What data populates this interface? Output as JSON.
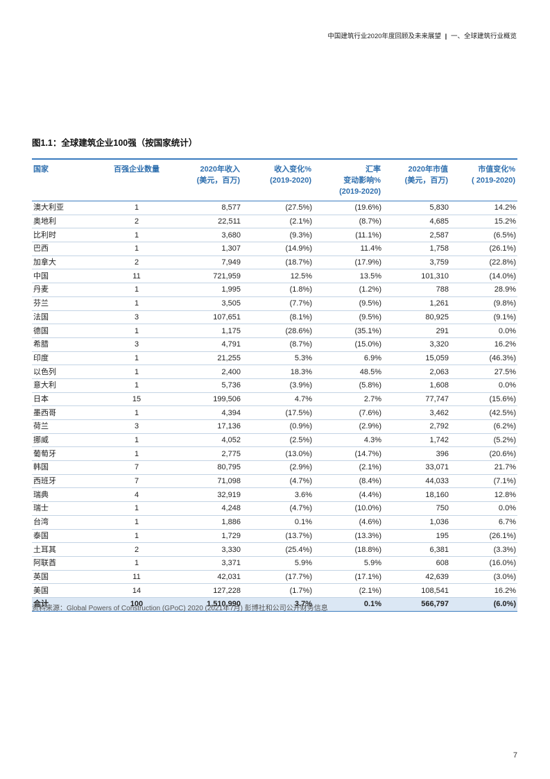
{
  "header": {
    "doc_title": "中国建筑行业2020年度回顾及未来展望",
    "separator": "|",
    "section": "一、全球建筑行业概览"
  },
  "figure": {
    "title": "图1.1：全球建筑企业100强（按国家统计）"
  },
  "table": {
    "headers": [
      [
        "国家"
      ],
      [
        "百强企业数量"
      ],
      [
        "2020年收入",
        "(美元，百万)"
      ],
      [
        "收入变化%",
        "(2019-2020)"
      ],
      [
        "汇率",
        "变动影响%",
        "(2019-2020)"
      ],
      [
        "2020年市值",
        "(美元，百万)"
      ],
      [
        "市值变化%",
        "( 2019-2020)"
      ]
    ],
    "rows": [
      [
        "澳大利亚",
        "1",
        "8,577",
        "(27.5%)",
        "(19.6%)",
        "5,830",
        "14.2%"
      ],
      [
        "奥地利",
        "2",
        "22,511",
        "(2.1%)",
        "(8.7%)",
        "4,685",
        "15.2%"
      ],
      [
        "比利时",
        "1",
        "3,680",
        "(9.3%)",
        "(11.1%)",
        "2,587",
        "(6.5%)"
      ],
      [
        "巴西",
        "1",
        "1,307",
        "(14.9%)",
        "11.4%",
        "1,758",
        "(26.1%)"
      ],
      [
        "加拿大",
        "2",
        "7,949",
        "(18.7%)",
        "(17.9%)",
        "3,759",
        "(22.8%)"
      ],
      [
        "中国",
        "11",
        "721,959",
        "12.5%",
        "13.5%",
        "101,310",
        "(14.0%)"
      ],
      [
        "丹麦",
        "1",
        "1,995",
        "(1.8%)",
        "(1.2%)",
        "788",
        "28.9%"
      ],
      [
        "芬兰",
        "1",
        "3,505",
        "(7.7%)",
        "(9.5%)",
        "1,261",
        "(9.8%)"
      ],
      [
        "法国",
        "3",
        "107,651",
        "(8.1%)",
        "(9.5%)",
        "80,925",
        "(9.1%)"
      ],
      [
        "德国",
        "1",
        "1,175",
        "(28.6%)",
        "(35.1%)",
        "291",
        "0.0%"
      ],
      [
        "希腊",
        "3",
        "4,791",
        "(8.7%)",
        "(15.0%)",
        "3,320",
        "16.2%"
      ],
      [
        "印度",
        "1",
        "21,255",
        "5.3%",
        "6.9%",
        "15,059",
        "(46.3%)"
      ],
      [
        "以色列",
        "1",
        "2,400",
        "18.3%",
        "48.5%",
        "2,063",
        "27.5%"
      ],
      [
        "意大利",
        "1",
        "5,736",
        "(3.9%)",
        "(5.8%)",
        "1,608",
        "0.0%"
      ],
      [
        "日本",
        "15",
        "199,506",
        "4.7%",
        "2.7%",
        "77,747",
        "(15.6%)"
      ],
      [
        "墨西哥",
        "1",
        "4,394",
        "(17.5%)",
        "(7.6%)",
        "3,462",
        "(42.5%)"
      ],
      [
        "荷兰",
        "3",
        "17,136",
        "(0.9%)",
        "(2.9%)",
        "2,792",
        "(6.2%)"
      ],
      [
        "挪威",
        "1",
        "4,052",
        "(2.5%)",
        "4.3%",
        "1,742",
        "(5.2%)"
      ],
      [
        "葡萄牙",
        "1",
        "2,775",
        "(13.0%)",
        "(14.7%)",
        "396",
        "(20.6%)"
      ],
      [
        "韩国",
        "7",
        "80,795",
        "(2.9%)",
        "(2.1%)",
        "33,071",
        "21.7%"
      ],
      [
        "西班牙",
        "7",
        "71,098",
        "(4.7%)",
        "(8.4%)",
        "44,033",
        "(7.1%)"
      ],
      [
        "瑞典",
        "4",
        "32,919",
        "3.6%",
        "(4.4%)",
        "18,160",
        "12.8%"
      ],
      [
        "瑞士",
        "1",
        "4,248",
        "(4.7%)",
        "(10.0%)",
        "750",
        "0.0%"
      ],
      [
        "台湾",
        "1",
        "1,886",
        "0.1%",
        "(4.6%)",
        "1,036",
        "6.7%"
      ],
      [
        "泰国",
        "1",
        "1,729",
        "(13.7%)",
        "(13.3%)",
        "195",
        "(26.1%)"
      ],
      [
        "土耳其",
        "2",
        "3,330",
        "(25.4%)",
        "(18.8%)",
        "6,381",
        "(3.3%)"
      ],
      [
        "阿联酋",
        "1",
        "3,371",
        "5.9%",
        "5.9%",
        "608",
        "(16.0%)"
      ],
      [
        "英国",
        "11",
        "42,031",
        "(17.7%)",
        "(17.1%)",
        "42,639",
        "(3.0%)"
      ],
      [
        "美国",
        "14",
        "127,228",
        "(1.7%)",
        "(2.1%)",
        "108,541",
        "16.2%"
      ]
    ],
    "total": [
      "合计",
      "100",
      "1,510,990",
      "3.7%",
      "0.1%",
      "566,797",
      "(6.0%)"
    ]
  },
  "source": "资料来源：Global Powers of Construction (GPoC) 2020 (2021年7月) 彭博社和公司公开财务信息",
  "page_number": "7",
  "colors": {
    "accent": "#2f6fae",
    "rule": "#3a7bbf",
    "total_bg": "#dbe7f4"
  }
}
